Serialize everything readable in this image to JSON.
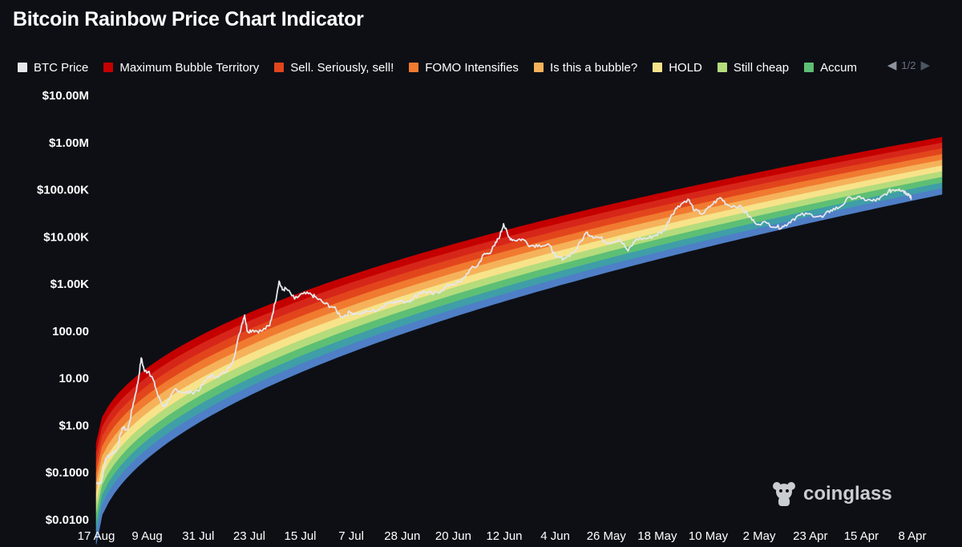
{
  "title": "Bitcoin Rainbow Price Chart Indicator",
  "legend": {
    "items": [
      {
        "label": "BTC Price",
        "color": "#e5e7eb"
      },
      {
        "label": "Maximum Bubble Territory",
        "color": "#c40000"
      },
      {
        "label": "Sell. Seriously, sell!",
        "color": "#e2451c"
      },
      {
        "label": "FOMO Intensifies",
        "color": "#f07a30"
      },
      {
        "label": "Is this a bubble?",
        "color": "#f5b25a"
      },
      {
        "label": "HOLD",
        "color": "#f7e38a"
      },
      {
        "label": "Still cheap",
        "color": "#b4dc7c"
      },
      {
        "label": "Accum",
        "color": "#5cbf75"
      }
    ],
    "page": "1/2",
    "prev_icon": "◀",
    "next_icon": "▶"
  },
  "watermark": {
    "text": "coinglass"
  },
  "chart_data": {
    "type": "line",
    "y_scale": "log",
    "ylim": [
      0.01,
      10000000
    ],
    "y_tick_labels": [
      "$10.00M",
      "$1.00M",
      "$100.00K",
      "$10.00K",
      "$1.00K",
      "100.00",
      "10.00",
      "$1.00",
      "$0.1000",
      "$0.0100"
    ],
    "x_tick_labels": [
      "17 Aug",
      "9 Aug",
      "31 Jul",
      "23 Jul",
      "15 Jul",
      "7 Jul",
      "28 Jun",
      "20 Jun",
      "12 Jun",
      "4 Jun",
      "26 May",
      "18 May",
      "10 May",
      "2 May",
      "23 Apr",
      "15 Apr",
      "8 Apr"
    ],
    "x_range_years": [
      2010.63,
      2025.85
    ],
    "rainbow_bands": {
      "colors": [
        "#c40000",
        "#d6261a",
        "#e2451c",
        "#f07a30",
        "#f5b25a",
        "#f7e38a",
        "#b4dc7c",
        "#5cbf75",
        "#3f9ea8",
        "#4f7fc6"
      ],
      "upper_start": 0.42,
      "upper_end": 1300000,
      "lower_start": 0.003,
      "lower_end": 80000
    },
    "series": [
      {
        "name": "BTC Price",
        "color": "#e5e7eb",
        "points": [
          [
            2010.63,
            0.06
          ],
          [
            2010.72,
            0.06
          ],
          [
            2010.8,
            0.2
          ],
          [
            2010.9,
            0.25
          ],
          [
            2011.0,
            0.3
          ],
          [
            2011.1,
            0.9
          ],
          [
            2011.2,
            0.8
          ],
          [
            2011.3,
            3
          ],
          [
            2011.38,
            8
          ],
          [
            2011.44,
            27
          ],
          [
            2011.5,
            14
          ],
          [
            2011.58,
            14
          ],
          [
            2011.66,
            9
          ],
          [
            2011.75,
            4
          ],
          [
            2011.85,
            2.5
          ],
          [
            2011.95,
            3.5
          ],
          [
            2012.05,
            6
          ],
          [
            2012.2,
            5
          ],
          [
            2012.35,
            5
          ],
          [
            2012.5,
            6
          ],
          [
            2012.65,
            11
          ],
          [
            2012.8,
            11
          ],
          [
            2012.95,
            13
          ],
          [
            2013.1,
            25
          ],
          [
            2013.25,
            140
          ],
          [
            2013.3,
            220
          ],
          [
            2013.35,
            100
          ],
          [
            2013.45,
            105
          ],
          [
            2013.6,
            100
          ],
          [
            2013.75,
            130
          ],
          [
            2013.85,
            400
          ],
          [
            2013.92,
            1150
          ],
          [
            2013.98,
            750
          ],
          [
            2014.05,
            800
          ],
          [
            2014.2,
            480
          ],
          [
            2014.35,
            620
          ],
          [
            2014.5,
            600
          ],
          [
            2014.6,
            500
          ],
          [
            2014.75,
            380
          ],
          [
            2014.9,
            320
          ],
          [
            2015.05,
            200
          ],
          [
            2015.2,
            250
          ],
          [
            2015.35,
            235
          ],
          [
            2015.55,
            260
          ],
          [
            2015.75,
            300
          ],
          [
            2015.85,
            390
          ],
          [
            2016.0,
            430
          ],
          [
            2016.15,
            420
          ],
          [
            2016.3,
            460
          ],
          [
            2016.45,
            650
          ],
          [
            2016.55,
            680
          ],
          [
            2016.7,
            610
          ],
          [
            2016.85,
            740
          ],
          [
            2017.0,
            980
          ],
          [
            2017.2,
            1100
          ],
          [
            2017.35,
            2000
          ],
          [
            2017.5,
            2500
          ],
          [
            2017.6,
            4200
          ],
          [
            2017.7,
            4500
          ],
          [
            2017.8,
            6500
          ],
          [
            2017.9,
            11000
          ],
          [
            2017.96,
            19000
          ],
          [
            2018.05,
            10000
          ],
          [
            2018.15,
            8500
          ],
          [
            2018.3,
            9000
          ],
          [
            2018.45,
            6500
          ],
          [
            2018.6,
            6800
          ],
          [
            2018.8,
            6400
          ],
          [
            2018.9,
            3700
          ],
          [
            2019.05,
            3500
          ],
          [
            2019.25,
            5000
          ],
          [
            2019.45,
            12500
          ],
          [
            2019.55,
            10500
          ],
          [
            2019.7,
            9500
          ],
          [
            2019.85,
            7500
          ],
          [
            2020.05,
            9000
          ],
          [
            2020.2,
            5000
          ],
          [
            2020.35,
            9000
          ],
          [
            2020.55,
            9300
          ],
          [
            2020.7,
            11000
          ],
          [
            2020.85,
            13500
          ],
          [
            2020.98,
            29000
          ],
          [
            2021.1,
            45000
          ],
          [
            2021.28,
            63000
          ],
          [
            2021.4,
            36000
          ],
          [
            2021.55,
            31000
          ],
          [
            2021.7,
            47000
          ],
          [
            2021.86,
            68000
          ],
          [
            2022.0,
            47000
          ],
          [
            2022.2,
            45000
          ],
          [
            2022.35,
            30000
          ],
          [
            2022.48,
            20000
          ],
          [
            2022.7,
            19500
          ],
          [
            2022.88,
            16000
          ],
          [
            2023.0,
            16500
          ],
          [
            2023.15,
            23000
          ],
          [
            2023.3,
            29000
          ],
          [
            2023.5,
            30000
          ],
          [
            2023.7,
            26000
          ],
          [
            2023.85,
            37000
          ],
          [
            2024.0,
            42000
          ],
          [
            2024.2,
            70000
          ],
          [
            2024.4,
            65000
          ],
          [
            2024.6,
            58000
          ],
          [
            2024.72,
            62000
          ],
          [
            2024.88,
            90000
          ],
          [
            2024.97,
            100000
          ],
          [
            2025.08,
            104000
          ],
          [
            2025.15,
            96000
          ],
          [
            2025.22,
            84000
          ],
          [
            2025.27,
            78000
          ],
          [
            2025.3,
            62000
          ]
        ]
      }
    ]
  }
}
